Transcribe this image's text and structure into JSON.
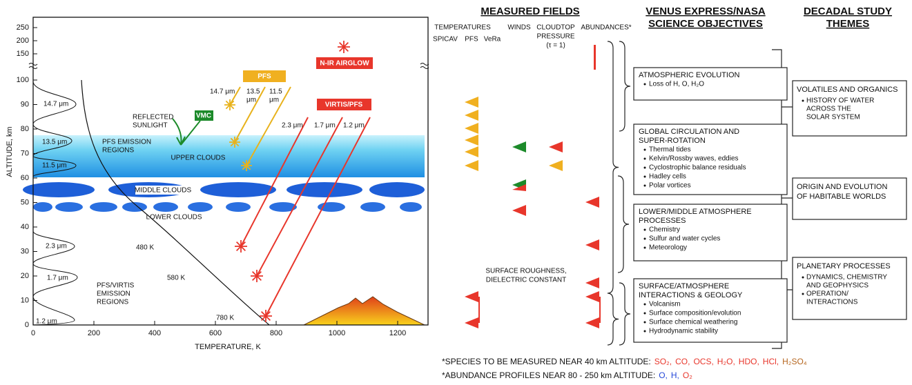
{
  "plot": {
    "x_label": "TEMPERATURE, K",
    "y_label": "ALTITUDE, km",
    "xlim": [
      0,
      1300
    ],
    "ylim": [
      0,
      250
    ],
    "xticks": [
      0,
      200,
      400,
      600,
      800,
      1000,
      1200
    ],
    "yticks": [
      0,
      10,
      20,
      30,
      40,
      50,
      60,
      70,
      80,
      90,
      100,
      150,
      200,
      250
    ],
    "labels": {
      "pfs_band_1": "14.7 μm",
      "pfs_band_2": "13.5 μm",
      "pfs_band_3": "11.5 μm",
      "pfs_regions": [
        "PFS EMISSION",
        "REGIONS"
      ],
      "virtis_band_1": "2.3 μm",
      "virtis_band_2": "1.7 μm",
      "virtis_band_3": "1.2 μm",
      "virtis_regions": [
        "PFS/VIRTIS",
        "EMISSION",
        "REGIONS"
      ],
      "reflected": [
        "REFLECTED",
        "SUNLIGHT"
      ],
      "vmc": "VMC",
      "pfs": "PFS",
      "pfs_arrow_1": "14.7 μm",
      "pfs_arrow_2": [
        "13.5",
        "μm"
      ],
      "pfs_arrow_3": [
        "11.5",
        "μm"
      ],
      "airglow": "N-IR AIRGLOW",
      "virtis_pfs": "VIRTIS/PFS",
      "virtis_arrow_1": "2.3 μm",
      "virtis_arrow_2": "1.7 μm",
      "virtis_arrow_3": "1.2 μm",
      "upper_clouds": "UPPER CLOUDS",
      "middle_clouds": "MIDDLE CLOUDS",
      "lower_clouds": "LOWER CLOUDS",
      "temp_1": "480 K",
      "temp_2": "580 K",
      "temp_3": "780 K"
    }
  },
  "fields": {
    "title": "MEASURED FIELDS",
    "temperatures": "TEMPERATURES",
    "instruments": [
      "SPICAV",
      "PFS",
      "VeRa"
    ],
    "winds": "WINDS",
    "cloudtop": [
      "CLOUDTOP",
      "PRESSURE",
      "(τ = 1)"
    ],
    "abundances": "ABUNDANCES*",
    "surface": [
      "SURFACE ROUGHNESS,",
      "DIELECTRIC CONSTANT"
    ]
  },
  "objectives": {
    "title": [
      "VENUS EXPRESS/NASA",
      "SCIENCE OBJECTIVES"
    ],
    "boxes": [
      {
        "title": [
          "ATMOSPHERIC EVOLUTION"
        ],
        "items": [
          "Loss of H, O, H₂O"
        ]
      },
      {
        "title": [
          "GLOBAL CIRCULATION AND",
          "SUPER-ROTATION"
        ],
        "items": [
          "Thermal tides",
          "Kelvin/Rossby waves, eddies",
          "Cyclostrophic balance residuals",
          "Hadley cells",
          "Polar vortices"
        ]
      },
      {
        "title": [
          "LOWER/MIDDLE ATMOSPHERE",
          "PROCESSES"
        ],
        "items": [
          "Chemistry",
          "Sulfur and water cycles",
          "Meteorology"
        ]
      },
      {
        "title": [
          "SURFACE/ATMOSPHERE",
          "INTERACTIONS & GEOLOGY"
        ],
        "items": [
          "Volcanism",
          "Surface composition/evolution",
          "Surface chemical weathering",
          "Hydrodynamic stability"
        ]
      }
    ]
  },
  "themes": {
    "title": [
      "DECADAL STUDY",
      "THEMES"
    ],
    "boxes": [
      {
        "title": [
          "VOLATILES AND ORGANICS"
        ],
        "items": [
          [
            "HISTORY OF WATER",
            "ACROSS THE",
            "SOLAR SYSTEM"
          ]
        ]
      },
      {
        "title": [
          "ORIGIN AND EVOLUTION",
          "OF HABITABLE WORLDS"
        ],
        "items": []
      },
      {
        "title": [
          "PLANETARY PROCESSES"
        ],
        "items": [
          [
            "DYNAMICS, CHEMISTRY",
            "AND GEOPHYSICS"
          ],
          [
            "OPERATION/",
            "INTERACTIONS"
          ]
        ]
      }
    ]
  },
  "footnotes": [
    {
      "lead": "*SPECIES TO BE MEASURED NEAR 40 km ALTITUDE:",
      "species": [
        {
          "text": "SO₂,",
          "color": "#e8362b"
        },
        {
          "text": "CO,",
          "color": "#e8362b"
        },
        {
          "text": "OCS,",
          "color": "#e8362b"
        },
        {
          "text": "H₂O,",
          "color": "#e8362b"
        },
        {
          "text": "HDO,",
          "color": "#e8362b"
        },
        {
          "text": "HCl,",
          "color": "#e8362b"
        },
        {
          "text": "H₂SO₄",
          "color": "#b5651d"
        }
      ]
    },
    {
      "lead": "*ABUNDANCE PROFILES NEAR 80 - 250 km ALTITUDE:",
      "species": [
        {
          "text": "O,",
          "color": "#2447d8"
        },
        {
          "text": "H,",
          "color": "#2447d8"
        },
        {
          "text": "O₂",
          "color": "#e8362b"
        }
      ]
    }
  ]
}
